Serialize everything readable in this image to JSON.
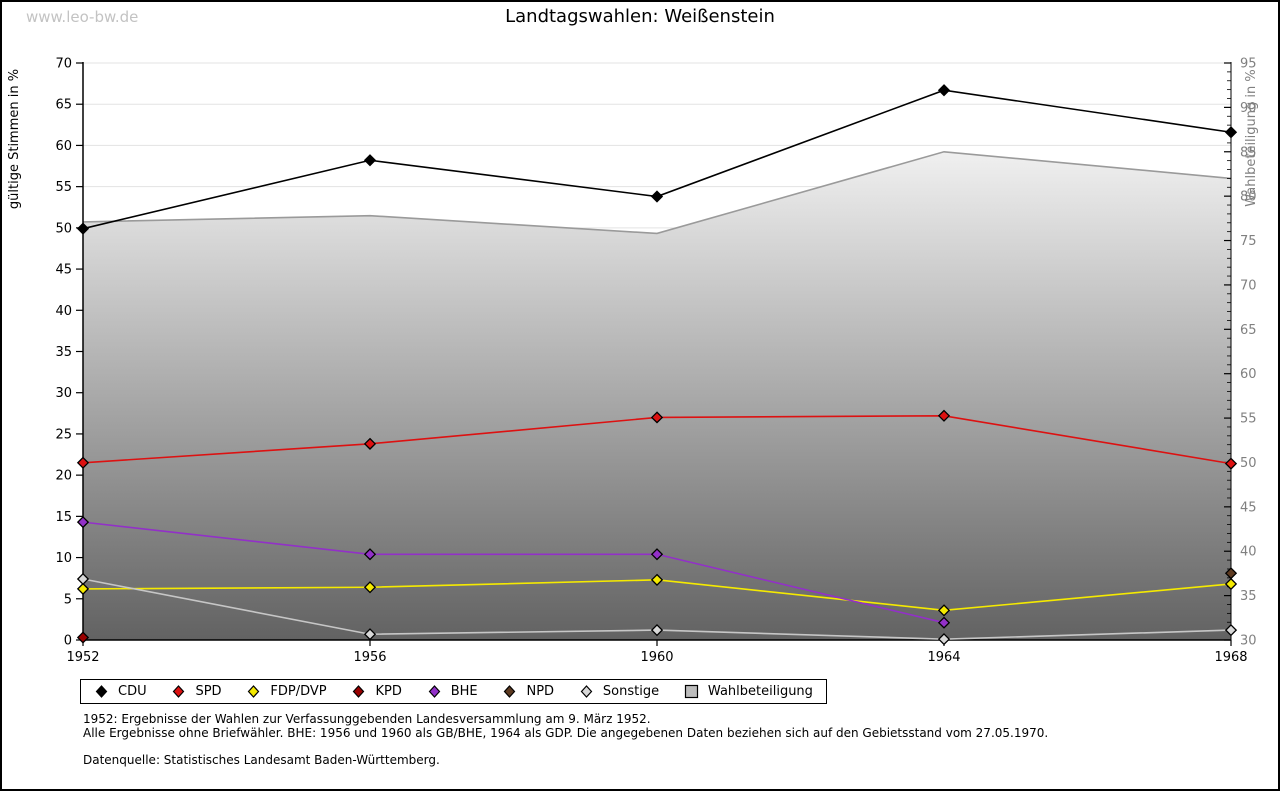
{
  "page": {
    "watermark": "www.leo-bw.de",
    "title": "Landtagswahlen: Weißenstein"
  },
  "footnotes": {
    "line1": "1952: Ergebnisse der Wahlen zur Verfassunggebenden Landesversammlung am 9. März 1952.",
    "line2": "Alle Ergebnisse ohne Briefwähler. BHE: 1956 und 1960 als GB/BHE, 1964 als GDP. Die angegebenen Daten beziehen sich auf den Gebietsstand vom 27.05.1970.",
    "source": "Datenquelle: Statistisches Landesamt Baden-Württemberg."
  },
  "chart_data": {
    "type": "line",
    "title": "Landtagswahlen: Weißenstein",
    "x": [
      1952,
      1956,
      1960,
      1964,
      1968
    ],
    "left_axis": {
      "label": "gültige Stimmen in %",
      "min": 0,
      "max": 70,
      "step": 5,
      "color": "#000000"
    },
    "right_axis": {
      "label": "Wahlbeteiligung in %",
      "min": 30,
      "max": 95,
      "step": 5,
      "minor_step": 1,
      "color": "#808080"
    },
    "grid": true,
    "grid_color": "#e3e3e3",
    "legend_position": "bottom",
    "series": [
      {
        "name": "CDU",
        "color": "#000000",
        "axis": "left",
        "values": [
          49.9,
          58.2,
          53.8,
          66.7,
          61.6
        ]
      },
      {
        "name": "SPD",
        "color": "#dd1111",
        "axis": "left",
        "values": [
          21.5,
          23.8,
          27.0,
          27.2,
          21.4
        ]
      },
      {
        "name": "FDP/DVP",
        "color": "#f5ea00",
        "axis": "left",
        "values": [
          6.2,
          6.4,
          7.3,
          3.6,
          6.8
        ]
      },
      {
        "name": "KPD",
        "color": "#990000",
        "axis": "left",
        "values": [
          0.3,
          null,
          null,
          null,
          null
        ]
      },
      {
        "name": "BHE",
        "color": "#9230c8",
        "axis": "left",
        "values": [
          14.3,
          10.4,
          10.4,
          2.1,
          null
        ]
      },
      {
        "name": "NPD",
        "color": "#5d3a21",
        "axis": "left",
        "values": [
          null,
          null,
          null,
          null,
          8.1
        ]
      },
      {
        "name": "Sonstige",
        "color": "#d8d8d8",
        "line_color": "#c6c6c6",
        "axis": "left",
        "values": [
          7.4,
          0.7,
          1.2,
          0.1,
          1.2
        ]
      }
    ],
    "turnout": {
      "name": "Wahlbeteiligung",
      "axis": "right",
      "line_color": "#9a9a9a",
      "fill_top": "#f0f0f0",
      "fill_bottom": "#626262",
      "legend_fill": "#bdbdbd",
      "values": [
        77.1,
        77.8,
        75.8,
        85.0,
        82.0
      ]
    }
  }
}
